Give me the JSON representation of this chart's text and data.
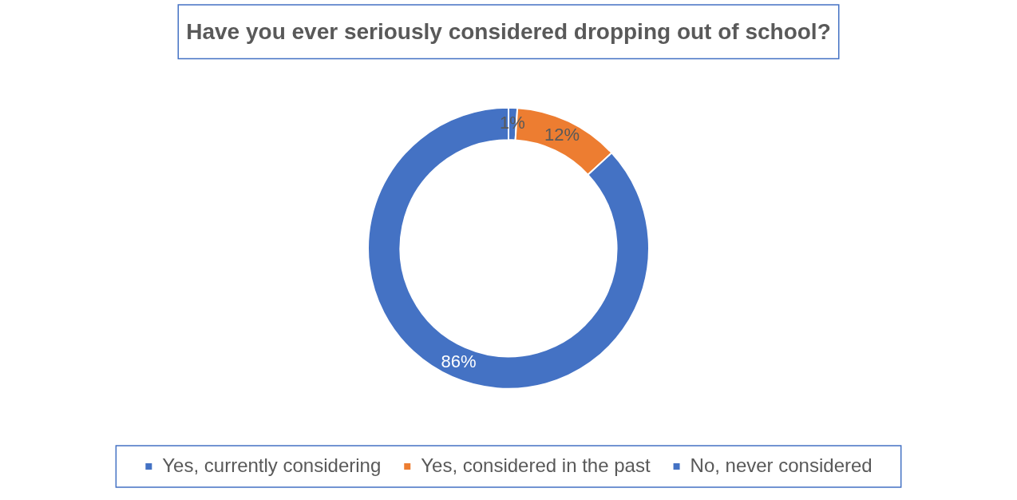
{
  "chart_data": {
    "type": "donut",
    "title": "Have you ever seriously considered dropping out of school?",
    "categories": [
      "Yes, currently considering",
      "Yes, considered in the past",
      "No, never considered"
    ],
    "values": [
      1,
      12,
      86
    ],
    "colors": [
      "#4472c4",
      "#ed7d31",
      "#4472c4"
    ],
    "value_labels": [
      "1%",
      "12%",
      "86%"
    ],
    "legend": "bottom"
  }
}
